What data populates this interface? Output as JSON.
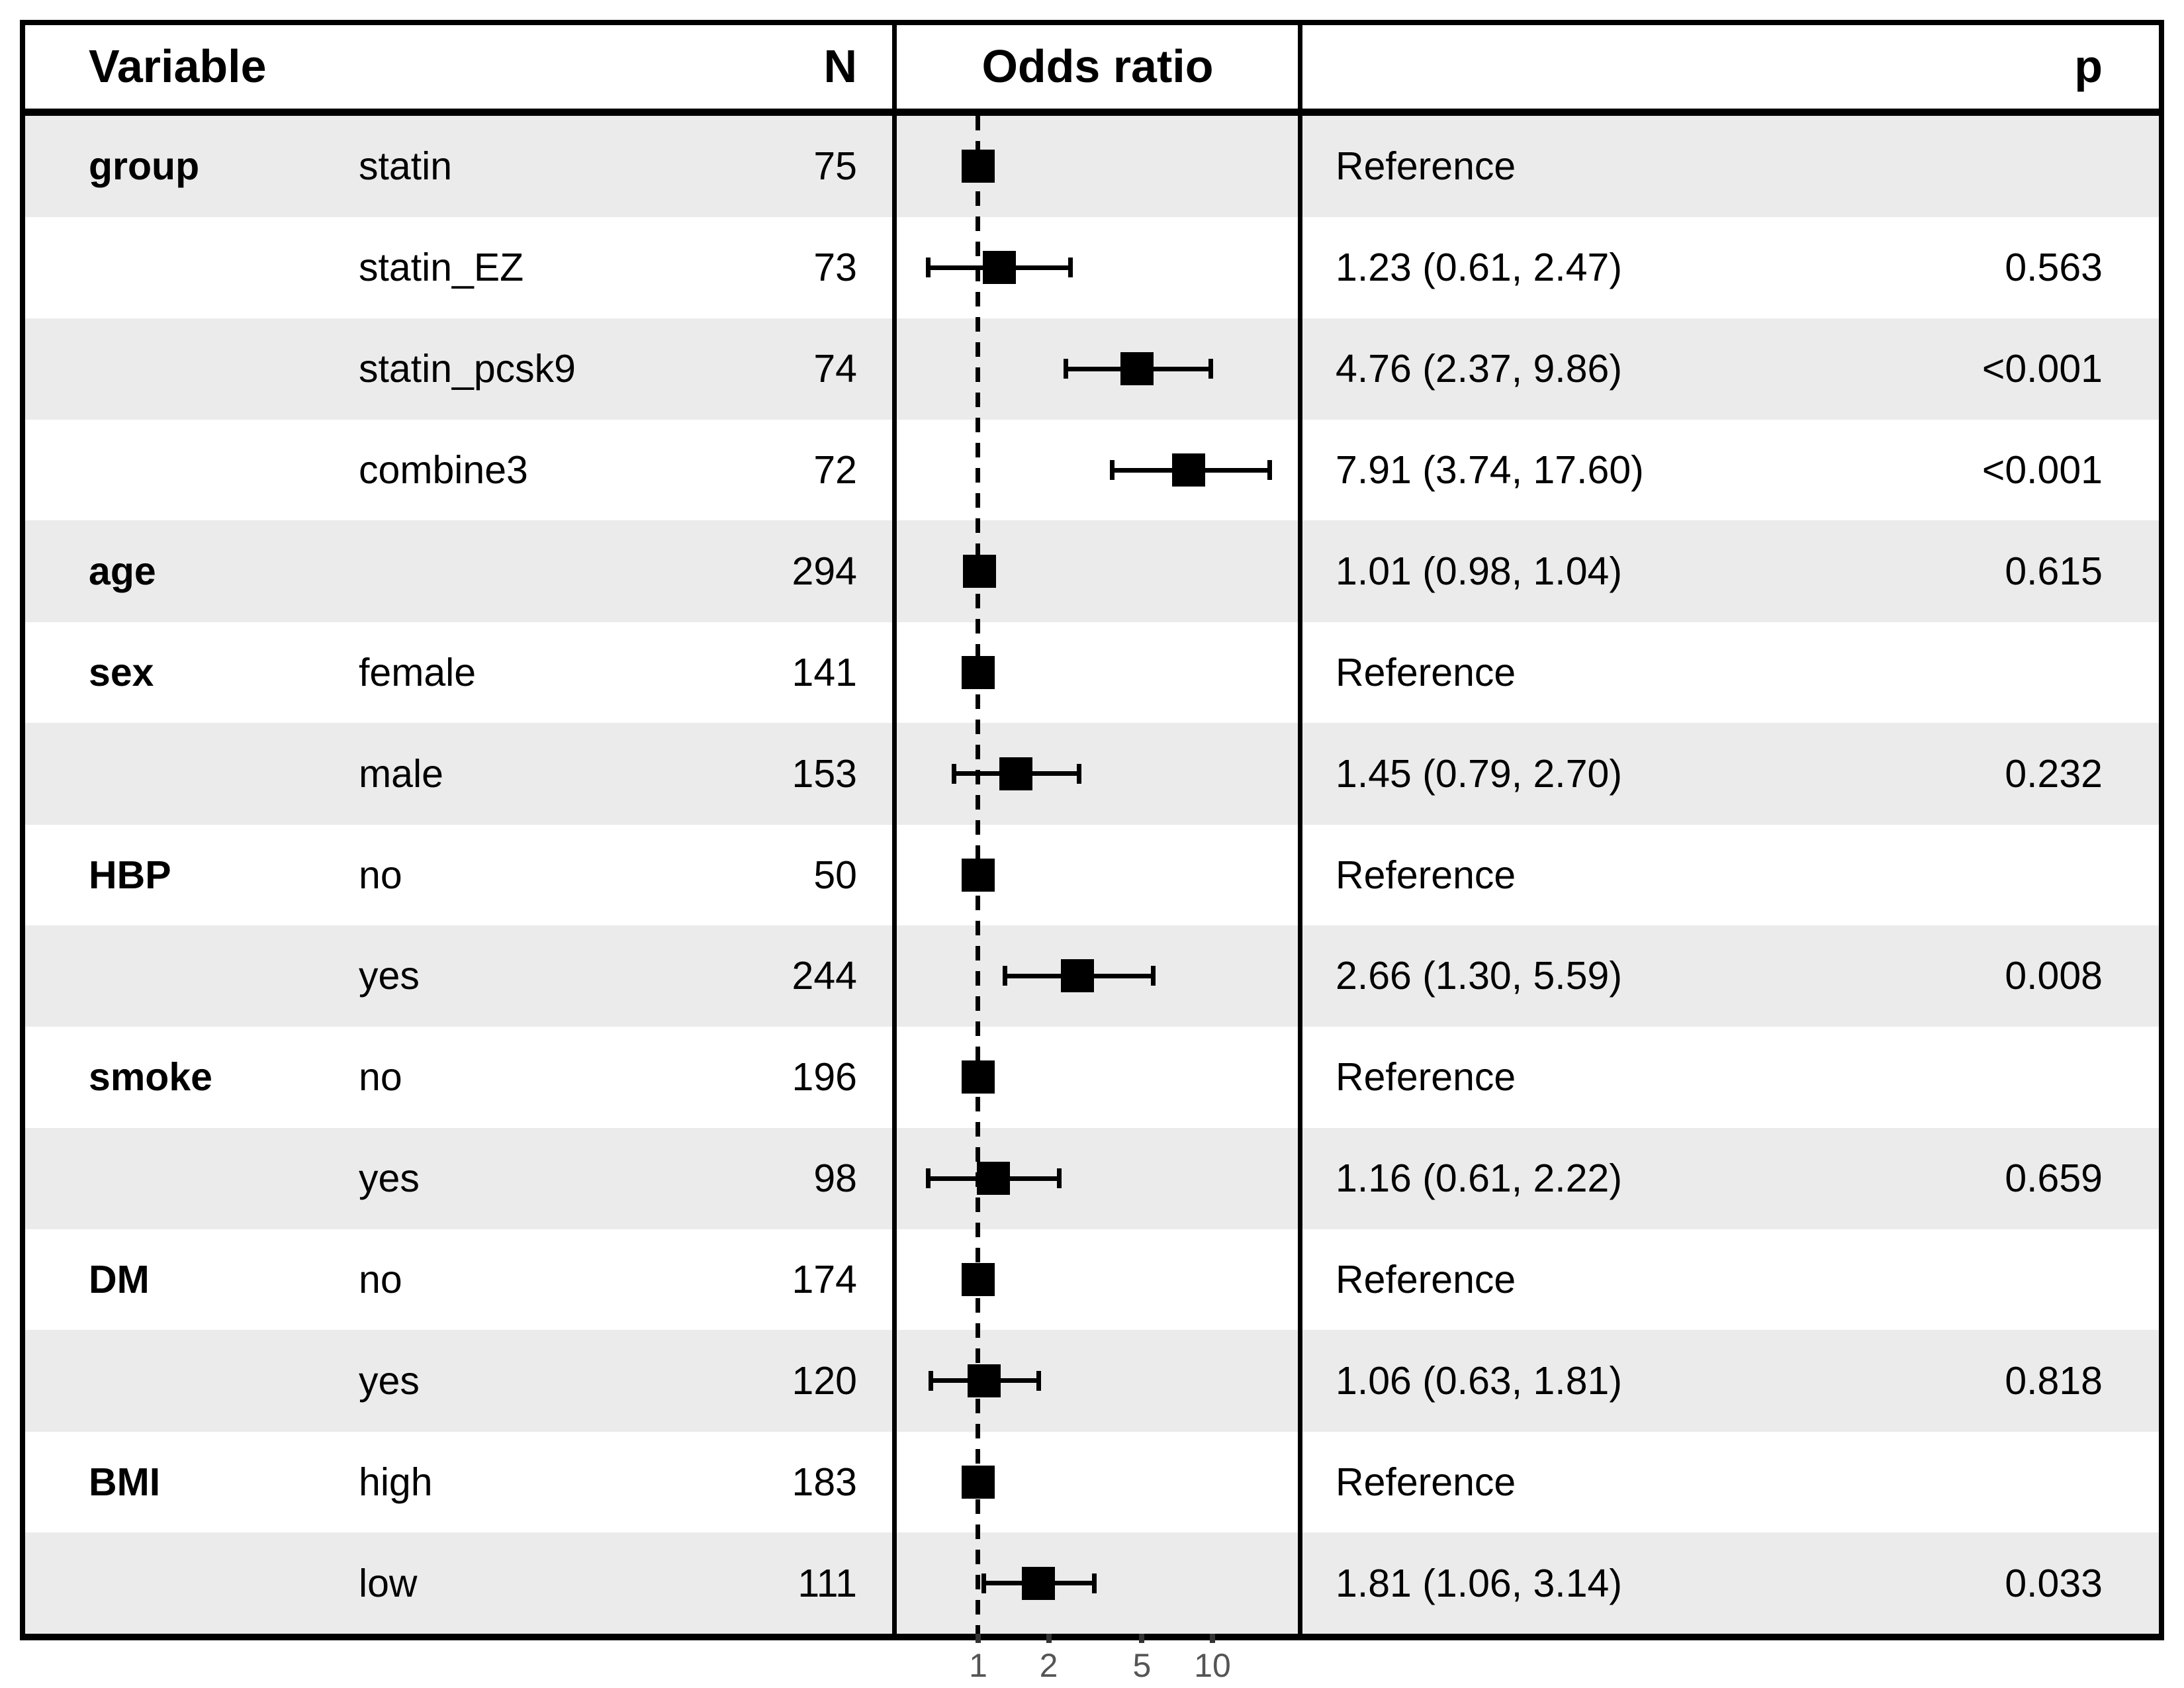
{
  "figure": {
    "header": {
      "variable": "Variable",
      "n": "N",
      "odds_ratio": "Odds ratio",
      "p": "p"
    },
    "colors": {
      "band": "#ebebeb",
      "marker": "#000000",
      "border": "#000000",
      "tick_mark": "#333333",
      "tick_label": "#555555"
    },
    "rows": [
      {
        "variable": "group",
        "level": "statin",
        "n": "75",
        "estimate": "Reference",
        "p": "",
        "shaded": true
      },
      {
        "variable": "",
        "level": "statin_EZ",
        "n": "73",
        "estimate": "1.23 (0.61, 2.47)",
        "p": "0.563",
        "shaded": false
      },
      {
        "variable": "",
        "level": "statin_pcsk9",
        "n": "74",
        "estimate": "4.76 (2.37, 9.86)",
        "p": "<0.001",
        "shaded": true
      },
      {
        "variable": "",
        "level": "combine3",
        "n": "72",
        "estimate": "7.91 (3.74, 17.60)",
        "p": "<0.001",
        "shaded": false
      },
      {
        "variable": "age",
        "level": "",
        "n": "294",
        "estimate": "1.01 (0.98, 1.04)",
        "p": "0.615",
        "shaded": true
      },
      {
        "variable": "sex",
        "level": "female",
        "n": "141",
        "estimate": "Reference",
        "p": "",
        "shaded": false
      },
      {
        "variable": "",
        "level": "male",
        "n": "153",
        "estimate": "1.45 (0.79, 2.70)",
        "p": "0.232",
        "shaded": true
      },
      {
        "variable": "HBP",
        "level": "no",
        "n": "50",
        "estimate": "Reference",
        "p": "",
        "shaded": false
      },
      {
        "variable": "",
        "level": "yes",
        "n": "244",
        "estimate": "2.66 (1.30, 5.59)",
        "p": "0.008",
        "shaded": true
      },
      {
        "variable": "smoke",
        "level": "no",
        "n": "196",
        "estimate": "Reference",
        "p": "",
        "shaded": false
      },
      {
        "variable": "",
        "level": "yes",
        "n": "98",
        "estimate": "1.16 (0.61, 2.22)",
        "p": "0.659",
        "shaded": true
      },
      {
        "variable": "DM",
        "level": "no",
        "n": "174",
        "estimate": "Reference",
        "p": "",
        "shaded": false
      },
      {
        "variable": "",
        "level": "yes",
        "n": "120",
        "estimate": "1.06 (0.63, 1.81)",
        "p": "0.818",
        "shaded": true
      },
      {
        "variable": "BMI",
        "level": "high",
        "n": "183",
        "estimate": "Reference",
        "p": "",
        "shaded": false
      },
      {
        "variable": "",
        "level": "low",
        "n": "111",
        "estimate": "1.81 (1.06, 3.14)",
        "p": "0.033",
        "shaded": true
      }
    ]
  },
  "chart_data": {
    "type": "scatter",
    "variant": "forest-plot",
    "title": "",
    "xlabel": "Odds ratio",
    "x_scale": "log10",
    "x_ticks": [
      1,
      2,
      5,
      10
    ],
    "reference_line_x": 1,
    "grid": false,
    "points": [
      {
        "label": "group: statin",
        "n": 75,
        "or": 1.0,
        "ci_low": null,
        "ci_high": null,
        "reference": true,
        "p": null
      },
      {
        "label": "group: statin_EZ",
        "n": 73,
        "or": 1.23,
        "ci_low": 0.61,
        "ci_high": 2.47,
        "reference": false,
        "p": 0.563
      },
      {
        "label": "group: statin_pcsk9",
        "n": 74,
        "or": 4.76,
        "ci_low": 2.37,
        "ci_high": 9.86,
        "reference": false,
        "p": "<0.001"
      },
      {
        "label": "group: combine3",
        "n": 72,
        "or": 7.91,
        "ci_low": 3.74,
        "ci_high": 17.6,
        "reference": false,
        "p": "<0.001"
      },
      {
        "label": "age",
        "n": 294,
        "or": 1.01,
        "ci_low": 0.98,
        "ci_high": 1.04,
        "reference": false,
        "p": 0.615
      },
      {
        "label": "sex: female",
        "n": 141,
        "or": 1.0,
        "ci_low": null,
        "ci_high": null,
        "reference": true,
        "p": null
      },
      {
        "label": "sex: male",
        "n": 153,
        "or": 1.45,
        "ci_low": 0.79,
        "ci_high": 2.7,
        "reference": false,
        "p": 0.232
      },
      {
        "label": "HBP: no",
        "n": 50,
        "or": 1.0,
        "ci_low": null,
        "ci_high": null,
        "reference": true,
        "p": null
      },
      {
        "label": "HBP: yes",
        "n": 244,
        "or": 2.66,
        "ci_low": 1.3,
        "ci_high": 5.59,
        "reference": false,
        "p": 0.008
      },
      {
        "label": "smoke: no",
        "n": 196,
        "or": 1.0,
        "ci_low": null,
        "ci_high": null,
        "reference": true,
        "p": null
      },
      {
        "label": "smoke: yes",
        "n": 98,
        "or": 1.16,
        "ci_low": 0.61,
        "ci_high": 2.22,
        "reference": false,
        "p": 0.659
      },
      {
        "label": "DM: no",
        "n": 174,
        "or": 1.0,
        "ci_low": null,
        "ci_high": null,
        "reference": true,
        "p": null
      },
      {
        "label": "DM: yes",
        "n": 120,
        "or": 1.06,
        "ci_low": 0.63,
        "ci_high": 1.81,
        "reference": false,
        "p": 0.818
      },
      {
        "label": "BMI: high",
        "n": 183,
        "or": 1.0,
        "ci_low": null,
        "ci_high": null,
        "reference": true,
        "p": null
      },
      {
        "label": "BMI: low",
        "n": 111,
        "or": 1.81,
        "ci_low": 1.06,
        "ci_high": 3.14,
        "reference": false,
        "p": 0.033
      }
    ]
  }
}
